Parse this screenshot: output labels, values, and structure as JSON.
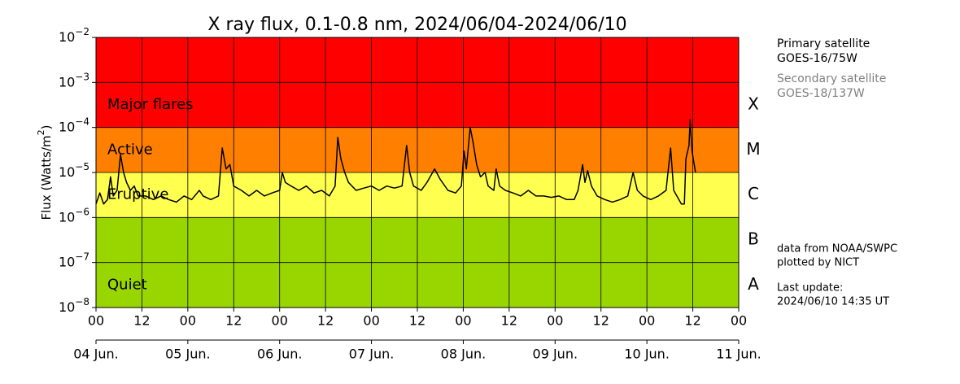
{
  "chart_data": {
    "type": "line",
    "title": "X ray flux, 0.1-0.8 nm, 2024/06/04-2024/06/10",
    "y_label": {
      "text": "Flux (Watts/m",
      "superscript": "2",
      "close": ")"
    },
    "log_scale": true,
    "grid": true,
    "xlim": [
      0,
      168
    ],
    "xticks": [
      {
        "value": 0,
        "label": "00"
      },
      {
        "value": 12,
        "label": "12"
      },
      {
        "value": 24,
        "label": "00"
      },
      {
        "value": 36,
        "label": "12"
      },
      {
        "value": 48,
        "label": "00"
      },
      {
        "value": 60,
        "label": "12"
      },
      {
        "value": 72,
        "label": "00"
      },
      {
        "value": 84,
        "label": "12"
      },
      {
        "value": 96,
        "label": "00"
      },
      {
        "value": 108,
        "label": "12"
      },
      {
        "value": 120,
        "label": "00"
      },
      {
        "value": 132,
        "label": "12"
      },
      {
        "value": 144,
        "label": "00"
      },
      {
        "value": 156,
        "label": "12"
      },
      {
        "value": 168,
        "label": "00"
      }
    ],
    "day_ticks": [
      {
        "value": 0,
        "label": "04 Jun."
      },
      {
        "value": 24,
        "label": "05 Jun."
      },
      {
        "value": 48,
        "label": "06 Jun."
      },
      {
        "value": 72,
        "label": "07 Jun."
      },
      {
        "value": 96,
        "label": "08 Jun."
      },
      {
        "value": 120,
        "label": "09 Jun."
      },
      {
        "value": 144,
        "label": "10 Jun."
      },
      {
        "value": 168,
        "label": "11 Jun."
      }
    ],
    "ylim": [
      1e-08,
      0.01
    ],
    "yticks": [
      {
        "value": 1e-08,
        "label": "10",
        "exponent": "−8"
      },
      {
        "value": 1e-07,
        "label": "10",
        "exponent": "−7"
      },
      {
        "value": 1e-06,
        "label": "10",
        "exponent": "−6"
      },
      {
        "value": 1e-05,
        "label": "10",
        "exponent": "−5"
      },
      {
        "value": 0.0001,
        "label": "10",
        "exponent": "−4"
      },
      {
        "value": 0.001,
        "label": "10",
        "exponent": "−3"
      },
      {
        "value": 0.01,
        "label": "10",
        "exponent": "−2"
      }
    ],
    "bands": [
      {
        "label": "Major flares",
        "range": [
          0.0001,
          0.01
        ],
        "color": "#ff0000"
      },
      {
        "label": "Active",
        "range": [
          1e-05,
          0.0001
        ],
        "color": "#ff7f00"
      },
      {
        "label": "Eruptive",
        "range": [
          1e-06,
          1e-05
        ],
        "color": "#ffff50"
      },
      {
        "label": "Quiet",
        "range": [
          1e-08,
          1e-06
        ],
        "color": "#99d600"
      }
    ],
    "classes": [
      {
        "label": "X",
        "range": [
          0.0001,
          0.001
        ]
      },
      {
        "label": "M",
        "range": [
          1e-05,
          0.0001
        ]
      },
      {
        "label": "C",
        "range": [
          1e-06,
          1e-05
        ]
      },
      {
        "label": "B",
        "range": [
          1e-07,
          1e-06
        ]
      },
      {
        "label": "A",
        "range": [
          1e-08,
          1e-07
        ]
      }
    ],
    "series": [
      {
        "name": "GOES-16/75W",
        "color": "#000000",
        "x": [
          0,
          1,
          2,
          3,
          3.8,
          4.5,
          5.5,
          6.4,
          7.2,
          8,
          9,
          10,
          11,
          13,
          15,
          17,
          19,
          21,
          23,
          25,
          27,
          28,
          30,
          32,
          33,
          34,
          35,
          36,
          38,
          40,
          42,
          44,
          46,
          48,
          48.7,
          49.5,
          51,
          53,
          55,
          57,
          59,
          61,
          62.5,
          63.2,
          64,
          65,
          66,
          68,
          70,
          72,
          74,
          76,
          78,
          80,
          81.2,
          82,
          83,
          85,
          86.5,
          88.5,
          90,
          92,
          94,
          95.5,
          96.2,
          96.8,
          97.8,
          98.5,
          99.5,
          100.5,
          101.7,
          102.5,
          104,
          104.6,
          105.5,
          107,
          109,
          111,
          113,
          115,
          117,
          119,
          121,
          123,
          125,
          126,
          127.2,
          127.8,
          128.5,
          129.5,
          131,
          133,
          135,
          137,
          139,
          140.4,
          141.5,
          143,
          145,
          147,
          149,
          150.2,
          151,
          153,
          153.8,
          154.2,
          155,
          155.3,
          155.8,
          156.7
        ],
        "values": [
          2e-06,
          3.5e-06,
          2e-06,
          2.5e-06,
          8e-06,
          3e-06,
          4e-06,
          2.5e-05,
          1e-05,
          6e-06,
          4e-06,
          5e-06,
          3e-06,
          3e-06,
          2.5e-06,
          3e-06,
          2.5e-06,
          2.2e-06,
          3e-06,
          2.5e-06,
          4e-06,
          3e-06,
          2.5e-06,
          3e-06,
          3.5e-05,
          1.2e-05,
          1.5e-05,
          5e-06,
          4e-06,
          3e-06,
          4e-06,
          3e-06,
          3.5e-06,
          4e-06,
          1e-05,
          6e-06,
          5e-06,
          4e-06,
          5e-06,
          3.5e-06,
          4e-06,
          3e-06,
          5e-06,
          6e-05,
          2e-05,
          1e-05,
          6e-06,
          4e-06,
          4.5e-06,
          5e-06,
          4e-06,
          5e-06,
          4.5e-06,
          5e-06,
          4e-05,
          1e-05,
          5e-06,
          4e-06,
          6e-06,
          1.2e-05,
          7e-06,
          4e-06,
          3.5e-06,
          5e-06,
          3e-05,
          1.2e-05,
          0.0001,
          5e-05,
          1.5e-05,
          8e-06,
          1e-05,
          5e-06,
          4e-06,
          1.2e-05,
          5e-06,
          4e-06,
          3.5e-06,
          3e-06,
          4e-06,
          3e-06,
          3e-06,
          2.8e-06,
          3e-06,
          2.5e-06,
          2.5e-06,
          4e-06,
          1.5e-05,
          6e-06,
          1.1e-05,
          5e-06,
          3e-06,
          2.5e-06,
          2.2e-06,
          2.5e-06,
          3e-06,
          1e-05,
          4e-06,
          3e-06,
          2.5e-06,
          3e-06,
          4e-06,
          3.5e-05,
          4e-06,
          2e-06,
          2e-06,
          2e-05,
          4e-05,
          0.00015,
          3e-05,
          1e-05
        ]
      }
    ],
    "primary_label": "Primary satellite",
    "primary_satellite": "GOES-16/75W",
    "secondary_label": "Secondary satellite",
    "secondary_satellite": "GOES-18/137W",
    "secondary_color": "#808080",
    "source": "data from NOAA/SWPC",
    "plotter": "plotted by NICT",
    "update_label": "Last update:",
    "update_time": "2024/06/10 14:35 UT"
  }
}
